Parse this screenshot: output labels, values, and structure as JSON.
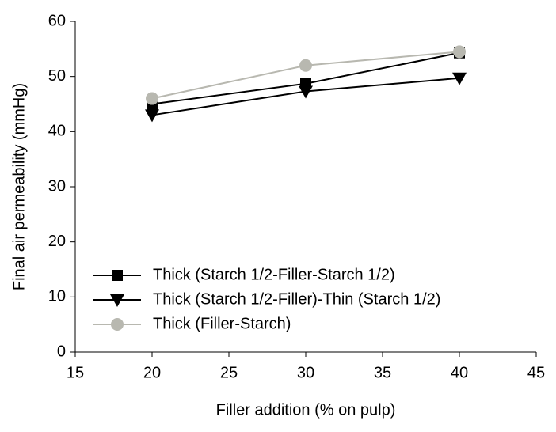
{
  "chart_data": {
    "type": "line",
    "xlabel": "Filler addition (% on pulp)",
    "ylabel": "Final air permeability (mmHg)",
    "x": [
      20,
      30,
      40
    ],
    "series": [
      {
        "name": "Thick (Starch 1/2-Filler-Starch 1/2)",
        "color": "#000000",
        "marker": "square",
        "values": [
          45,
          48.7,
          54.3
        ]
      },
      {
        "name": "Thick (Starch 1/2-Filler)-Thin (Starch 1/2)",
        "color": "#000000",
        "marker": "triangle-down",
        "values": [
          43,
          47.3,
          49.7
        ]
      },
      {
        "name": "Thick (Filler-Starch)",
        "color": "#b8b8b0",
        "marker": "circle",
        "values": [
          46,
          52,
          54.5
        ]
      }
    ],
    "xlim": [
      15,
      45
    ],
    "xticks": [
      15,
      20,
      25,
      30,
      35,
      40,
      45
    ],
    "ylim": [
      0,
      60
    ],
    "yticks": [
      0,
      10,
      20,
      30,
      40,
      50,
      60
    ],
    "legend": "lower-left"
  }
}
